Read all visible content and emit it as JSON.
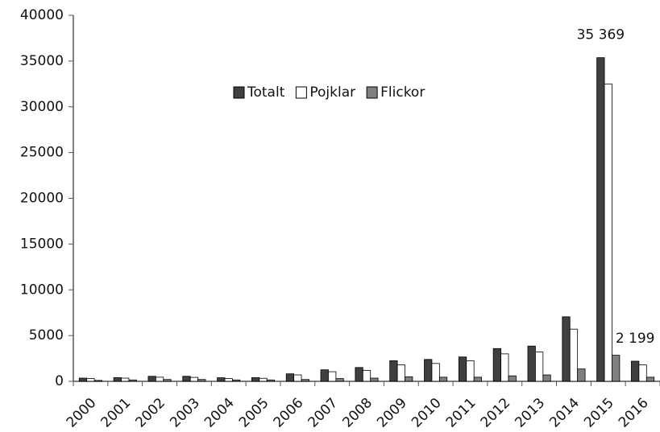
{
  "chart_data": {
    "type": "bar",
    "categories": [
      "2000",
      "2001",
      "2002",
      "2003",
      "2004",
      "2005",
      "2006",
      "2007",
      "2008",
      "2009",
      "2010",
      "2011",
      "2012",
      "2013",
      "2014",
      "2015",
      "2016"
    ],
    "series": [
      {
        "name": "Totalt",
        "color": "#404040",
        "values": [
          350,
          400,
          550,
          550,
          390,
          400,
          820,
          1260,
          1510,
          2250,
          2390,
          2660,
          3580,
          3850,
          7050,
          35369,
          2199
        ],
        "value_labels": [
          null,
          null,
          null,
          null,
          null,
          null,
          null,
          null,
          null,
          null,
          null,
          null,
          null,
          null,
          null,
          "35 369",
          "2 199"
        ]
      },
      {
        "name": "Pojklar",
        "color": "#ffffff",
        "values": [
          300,
          350,
          450,
          430,
          300,
          330,
          700,
          1050,
          1200,
          1800,
          1950,
          2250,
          3000,
          3200,
          5700,
          32500,
          1800
        ]
      },
      {
        "name": "Flickor",
        "color": "#808080",
        "values": [
          100,
          150,
          200,
          200,
          150,
          150,
          200,
          300,
          350,
          500,
          450,
          450,
          600,
          700,
          1350,
          2850,
          450
        ]
      }
    ],
    "ylim": [
      0,
      40000
    ],
    "yticks": [
      0,
      5000,
      10000,
      15000,
      20000,
      25000,
      30000,
      35000,
      40000
    ],
    "grid": false,
    "legend": "top"
  }
}
